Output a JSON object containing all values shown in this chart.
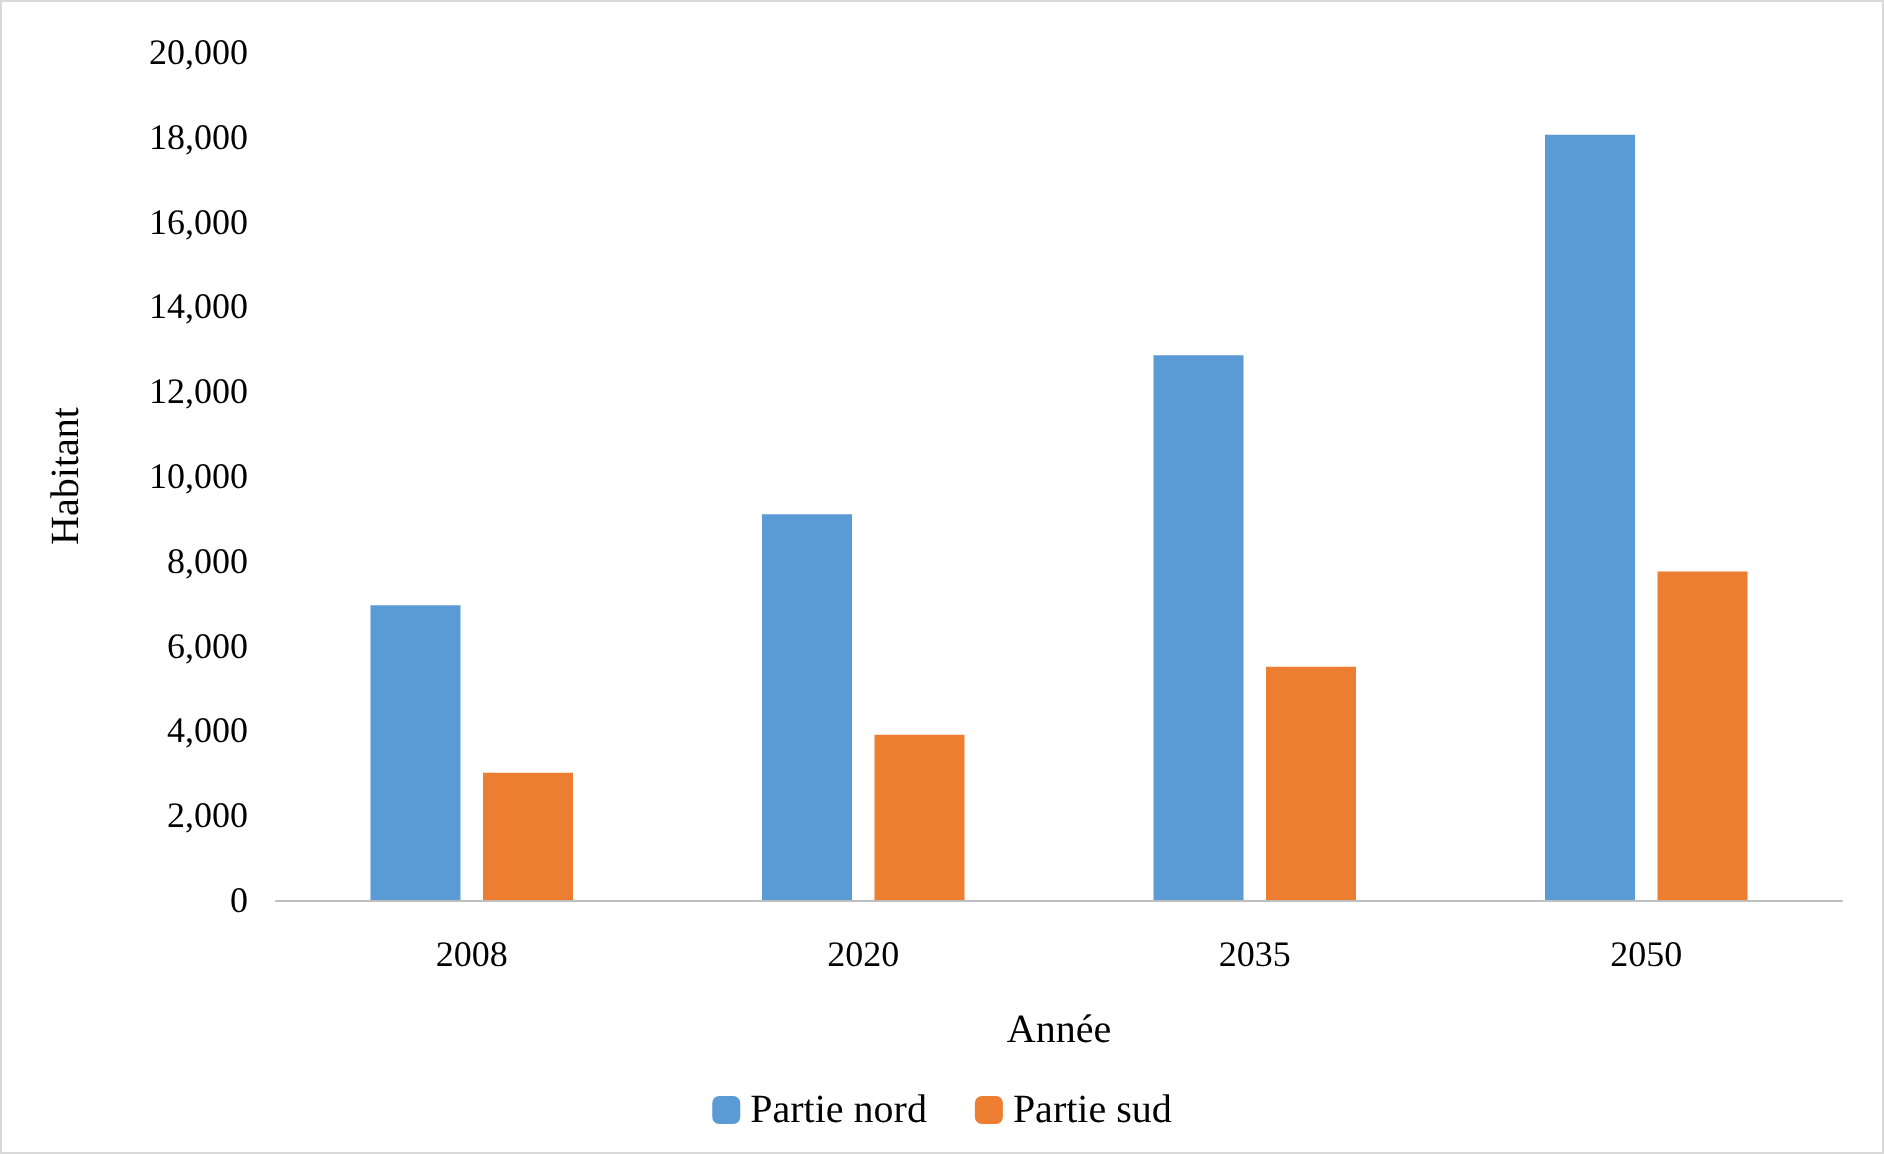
{
  "chart_data": {
    "type": "bar",
    "xlabel": "Année",
    "ylabel": "Habitant",
    "categories": [
      "2008",
      "2020",
      "2035",
      "2050"
    ],
    "series": [
      {
        "name": "Partie nord",
        "color": "#5b9bd5",
        "values": [
          6950,
          9100,
          12850,
          18050
        ]
      },
      {
        "name": "Partie sud",
        "color": "#ed7d31",
        "values": [
          3000,
          3900,
          5500,
          7750
        ]
      }
    ],
    "ylim": [
      0,
      20000
    ],
    "yticks": [
      0,
      {
        "value": 2000,
        "label": "2,000"
      },
      {
        "value": 4000,
        "label": "4,000"
      },
      {
        "value": 6000,
        "label": "6,000"
      },
      {
        "value": 8000,
        "label": "8,000"
      },
      {
        "value": 10000,
        "label": "10,000"
      },
      {
        "value": 12000,
        "label": "12,000"
      },
      {
        "value": 14000,
        "label": "14,000"
      },
      {
        "value": 16000,
        "label": "16,000"
      },
      {
        "value": 18000,
        "label": "18,000"
      },
      {
        "value": 20000,
        "label": "20,000"
      }
    ],
    "grid": false,
    "legend": "bottom"
  }
}
